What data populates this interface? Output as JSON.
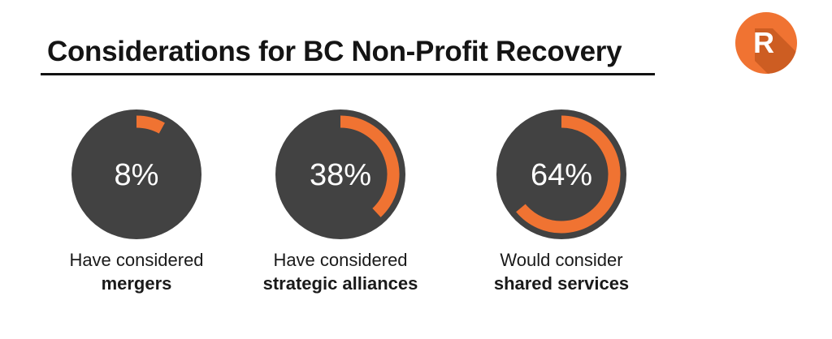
{
  "title": "Considerations for BC Non-Profit Recovery",
  "logo": {
    "letter": "R",
    "icon": "r-logo-icon"
  },
  "colors": {
    "accent": "#f07332",
    "disc": "#424242",
    "value_text": "#ffffff",
    "logo_shadow": "#c2551d"
  },
  "chart_data": {
    "type": "pie",
    "title": "Considerations for BC Non-Profit Recovery",
    "unit": "%",
    "items": [
      {
        "value": 8,
        "label": "8%",
        "caption_line1": "Have considered",
        "caption_line2": "mergers"
      },
      {
        "value": 38,
        "label": "38%",
        "caption_line1": "Have considered",
        "caption_line2": "strategic alliances"
      },
      {
        "value": 64,
        "label": "64%",
        "caption_line1": "Would consider",
        "caption_line2": "shared services"
      }
    ]
  }
}
